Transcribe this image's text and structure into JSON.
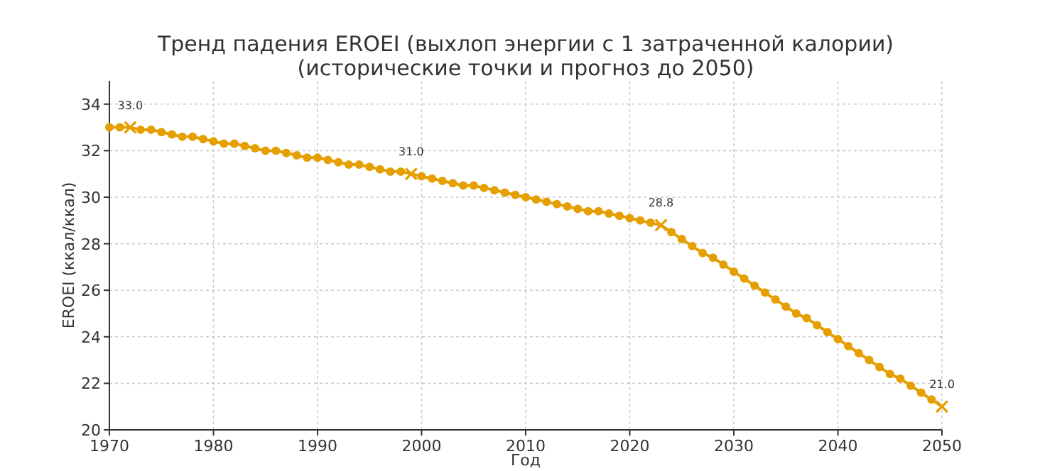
{
  "chart_data": {
    "type": "line",
    "title": "Тренд падения EROEI (выхлоп энергии с 1 затраченной калории)\n(исторические точки и прогноз до 2050)",
    "xlabel": "Год",
    "ylabel": "EROEI (ккал/ккал)",
    "xlim": [
      1970,
      2050
    ],
    "xticks": [
      1970,
      1980,
      1990,
      2000,
      2010,
      2020,
      2030,
      2040,
      2050
    ],
    "ylim": [
      20,
      35
    ],
    "yticks": [
      20,
      22,
      24,
      26,
      28,
      30,
      32,
      34
    ],
    "grid": true,
    "series": [
      {
        "color": "#e69f00",
        "marker": "circle",
        "line_style": "solid",
        "x": [
          1970,
          1971,
          1972,
          1973,
          1974,
          1975,
          1976,
          1977,
          1978,
          1979,
          1980,
          1981,
          1982,
          1983,
          1984,
          1985,
          1986,
          1987,
          1988,
          1989,
          1990,
          1991,
          1992,
          1993,
          1994,
          1995,
          1996,
          1997,
          1998,
          1999,
          2000,
          2001,
          2002,
          2003,
          2004,
          2005,
          2006,
          2007,
          2008,
          2009,
          2010,
          2011,
          2012,
          2013,
          2014,
          2015,
          2016,
          2017,
          2018,
          2019,
          2020,
          2021,
          2022,
          2023,
          2024,
          2025,
          2026,
          2027,
          2028,
          2029,
          2030,
          2031,
          2032,
          2033,
          2034,
          2035,
          2036,
          2037,
          2038,
          2039,
          2040,
          2041,
          2042,
          2043,
          2044,
          2045,
          2046,
          2047,
          2048,
          2049,
          2050
        ],
        "values": [
          33.0,
          33.0,
          33.0,
          32.9,
          32.9,
          32.8,
          32.7,
          32.6,
          32.6,
          32.5,
          32.4,
          32.3,
          32.3,
          32.2,
          32.1,
          32.0,
          32.0,
          31.9,
          31.8,
          31.7,
          31.7,
          31.6,
          31.5,
          31.4,
          31.4,
          31.3,
          31.2,
          31.1,
          31.1,
          31.0,
          30.9,
          30.8,
          30.7,
          30.6,
          30.5,
          30.5,
          30.4,
          30.3,
          30.2,
          30.1,
          30.0,
          29.9,
          29.8,
          29.7,
          29.6,
          29.5,
          29.4,
          29.4,
          29.3,
          29.2,
          29.1,
          29.0,
          28.9,
          28.8,
          28.5,
          28.2,
          27.9,
          27.6,
          27.4,
          27.1,
          26.8,
          26.5,
          26.2,
          25.9,
          25.6,
          25.3,
          25.0,
          24.8,
          24.5,
          24.2,
          23.9,
          23.6,
          23.3,
          23.0,
          22.7,
          22.4,
          22.2,
          21.9,
          21.6,
          21.3,
          21.0
        ]
      },
      {
        "type": "scatter",
        "color": "#e69f00",
        "marker": "cross",
        "x": [
          1972,
          1999,
          2023,
          2050
        ],
        "values": [
          33.0,
          31.0,
          28.8,
          21.0
        ],
        "value_labels": [
          "33.0",
          "31.0",
          "28.8",
          "21.0"
        ]
      }
    ]
  }
}
